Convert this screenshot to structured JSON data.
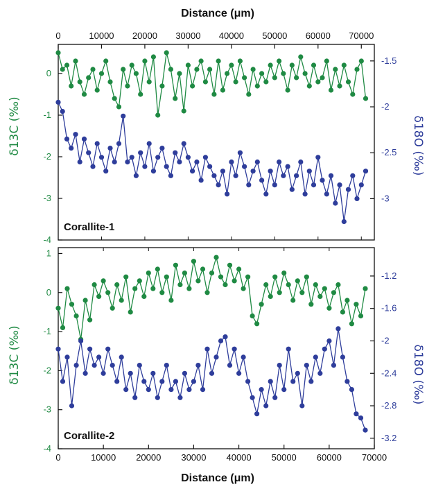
{
  "colors": {
    "carbon": "#1f8a43",
    "oxygen": "#2e3d9b",
    "axis": "#111111"
  },
  "labels": {
    "x_title_top": "Distance (μm)",
    "x_title_bottom": "Distance (μm)",
    "y_left": "δ13C (‰)",
    "y_right": "δ18O (‰)"
  },
  "chart_data": [
    {
      "type": "line",
      "title": "Corallite-1",
      "xlabel": "Distance (μm)",
      "x_ticks": [
        0,
        10000,
        20000,
        30000,
        40000,
        50000,
        60000,
        70000
      ],
      "xlim": [
        0,
        73000
      ],
      "y_left": {
        "label": "δ13C (‰)",
        "lim": [
          -4,
          0.7
        ],
        "ticks": [
          0,
          -1,
          -2,
          -3,
          -4
        ]
      },
      "y_right": {
        "label": "δ18O (‰)",
        "lim": [
          -3.45,
          -1.32
        ],
        "ticks": [
          -1.5,
          -2,
          -2.5,
          -3
        ]
      },
      "series": [
        {
          "name": "δ13C",
          "axis": "left",
          "color": "#1f8a43",
          "x": [
            0,
            1000,
            2000,
            3000,
            4000,
            5000,
            6000,
            7000,
            8000,
            9000,
            10000,
            11000,
            12000,
            13000,
            14000,
            15000,
            16000,
            17000,
            18000,
            19000,
            20000,
            21000,
            22000,
            23000,
            24000,
            25000,
            26000,
            27000,
            28000,
            29000,
            30000,
            31000,
            32000,
            33000,
            34000,
            35000,
            36000,
            37000,
            38000,
            39000,
            40000,
            41000,
            42000,
            43000,
            44000,
            45000,
            46000,
            47000,
            48000,
            49000,
            50000,
            51000,
            52000,
            53000,
            54000,
            55000,
            56000,
            57000,
            58000,
            59000,
            60000,
            61000,
            62000,
            63000,
            64000,
            65000,
            66000,
            67000,
            68000,
            69000,
            70000,
            71000
          ],
          "y": [
            0.5,
            0.1,
            0.2,
            -0.3,
            0.3,
            -0.2,
            -0.5,
            -0.1,
            0.1,
            -0.4,
            0.0,
            0.3,
            -0.2,
            -0.6,
            -0.8,
            0.1,
            -0.3,
            0.2,
            0.0,
            -0.5,
            0.3,
            -0.2,
            0.4,
            -1.0,
            -0.3,
            0.5,
            0.1,
            -0.6,
            0.0,
            -0.9,
            0.2,
            -0.3,
            0.1,
            0.3,
            -0.2,
            0.1,
            -0.5,
            0.3,
            -0.4,
            0.0,
            0.2,
            -0.2,
            0.3,
            -0.1,
            -0.5,
            0.1,
            -0.3,
            0.0,
            -0.2,
            0.2,
            -0.1,
            0.3,
            0.0,
            -0.4,
            0.2,
            -0.1,
            0.4,
            0.0,
            -0.3,
            0.2,
            -0.2,
            -0.1,
            0.3,
            -0.4,
            0.1,
            -0.3,
            0.2,
            -0.2,
            -0.5,
            0.1,
            0.3,
            -0.6
          ]
        },
        {
          "name": "δ18O",
          "axis": "right",
          "color": "#2e3d9b",
          "x": [
            0,
            1000,
            2000,
            3000,
            4000,
            5000,
            6000,
            7000,
            8000,
            9000,
            10000,
            11000,
            12000,
            13000,
            14000,
            15000,
            16000,
            17000,
            18000,
            19000,
            20000,
            21000,
            22000,
            23000,
            24000,
            25000,
            26000,
            27000,
            28000,
            29000,
            30000,
            31000,
            32000,
            33000,
            34000,
            35000,
            36000,
            37000,
            38000,
            39000,
            40000,
            41000,
            42000,
            43000,
            44000,
            45000,
            46000,
            47000,
            48000,
            49000,
            50000,
            51000,
            52000,
            53000,
            54000,
            55000,
            56000,
            57000,
            58000,
            59000,
            60000,
            61000,
            62000,
            63000,
            64000,
            65000,
            66000,
            67000,
            68000,
            69000,
            70000,
            71000
          ],
          "y": [
            -1.95,
            -2.05,
            -2.35,
            -2.45,
            -2.3,
            -2.6,
            -2.35,
            -2.5,
            -2.65,
            -2.4,
            -2.55,
            -2.7,
            -2.45,
            -2.6,
            -2.4,
            -2.1,
            -2.6,
            -2.55,
            -2.75,
            -2.5,
            -2.65,
            -2.4,
            -2.7,
            -2.55,
            -2.45,
            -2.65,
            -2.75,
            -2.5,
            -2.6,
            -2.4,
            -2.55,
            -2.7,
            -2.6,
            -2.8,
            -2.55,
            -2.65,
            -2.75,
            -2.85,
            -2.7,
            -2.95,
            -2.6,
            -2.75,
            -2.5,
            -2.65,
            -2.85,
            -2.7,
            -2.6,
            -2.8,
            -2.95,
            -2.7,
            -2.85,
            -2.6,
            -2.75,
            -2.65,
            -2.9,
            -2.75,
            -2.6,
            -2.95,
            -2.7,
            -2.85,
            -2.55,
            -2.8,
            -2.95,
            -2.75,
            -3.05,
            -2.85,
            -3.25,
            -2.9,
            -2.75,
            -3.0,
            -2.85,
            -2.7
          ]
        }
      ]
    },
    {
      "type": "line",
      "title": "Corallite-2",
      "xlabel": "Distance (μm)",
      "x_ticks": [
        0,
        10000,
        20000,
        30000,
        40000,
        50000,
        60000,
        70000
      ],
      "xlim": [
        0,
        70000
      ],
      "y_left": {
        "label": "δ13C (‰)",
        "lim": [
          -4,
          1.15
        ],
        "ticks": [
          1,
          0,
          -1,
          -2,
          -3,
          -4
        ]
      },
      "y_right": {
        "label": "δ18O (‰)",
        "lim": [
          -3.33,
          -0.85
        ],
        "ticks": [
          -1.2,
          -1.6,
          -2,
          -2.4,
          -2.8,
          -3.2
        ]
      },
      "series": [
        {
          "name": "δ13C",
          "axis": "left",
          "color": "#1f8a43",
          "x": [
            0,
            1000,
            2000,
            3000,
            4000,
            5000,
            6000,
            7000,
            8000,
            9000,
            10000,
            11000,
            12000,
            13000,
            14000,
            15000,
            16000,
            17000,
            18000,
            19000,
            20000,
            21000,
            22000,
            23000,
            24000,
            25000,
            26000,
            27000,
            28000,
            29000,
            30000,
            31000,
            32000,
            33000,
            34000,
            35000,
            36000,
            37000,
            38000,
            39000,
            40000,
            41000,
            42000,
            43000,
            44000,
            45000,
            46000,
            47000,
            48000,
            49000,
            50000,
            51000,
            52000,
            53000,
            54000,
            55000,
            56000,
            57000,
            58000,
            59000,
            60000,
            61000,
            62000,
            63000,
            64000,
            65000,
            66000,
            67000,
            68000
          ],
          "y": [
            -0.4,
            -0.9,
            0.1,
            -0.3,
            -0.6,
            -1.2,
            -0.2,
            -0.7,
            0.2,
            -0.1,
            0.3,
            0.0,
            -0.4,
            0.2,
            -0.2,
            0.4,
            -0.5,
            0.1,
            0.3,
            -0.1,
            0.5,
            0.1,
            0.6,
            0.0,
            0.4,
            -0.2,
            0.7,
            0.2,
            0.5,
            0.1,
            0.8,
            0.3,
            0.6,
            0.0,
            0.5,
            0.9,
            0.4,
            0.2,
            0.7,
            0.3,
            0.6,
            0.1,
            0.4,
            -0.6,
            -0.8,
            -0.3,
            0.2,
            -0.1,
            0.4,
            0.0,
            0.5,
            0.2,
            -0.2,
            0.3,
            0.0,
            0.4,
            -0.3,
            0.2,
            -0.1,
            0.1,
            -0.4,
            0.0,
            0.2,
            -0.5,
            -0.2,
            -0.8,
            -0.3,
            -0.6,
            0.1
          ]
        },
        {
          "name": "δ18O",
          "axis": "right",
          "color": "#2e3d9b",
          "x": [
            0,
            1000,
            2000,
            3000,
            4000,
            5000,
            6000,
            7000,
            8000,
            9000,
            10000,
            11000,
            12000,
            13000,
            14000,
            15000,
            16000,
            17000,
            18000,
            19000,
            20000,
            21000,
            22000,
            23000,
            24000,
            25000,
            26000,
            27000,
            28000,
            29000,
            30000,
            31000,
            32000,
            33000,
            34000,
            35000,
            36000,
            37000,
            38000,
            39000,
            40000,
            41000,
            42000,
            43000,
            44000,
            45000,
            46000,
            47000,
            48000,
            49000,
            50000,
            51000,
            52000,
            53000,
            54000,
            55000,
            56000,
            57000,
            58000,
            59000,
            60000,
            61000,
            62000,
            63000,
            64000,
            65000,
            66000,
            67000,
            68000
          ],
          "y": [
            -2.1,
            -2.5,
            -2.2,
            -2.8,
            -2.3,
            -2.0,
            -2.4,
            -2.1,
            -2.3,
            -2.2,
            -2.4,
            -2.1,
            -2.3,
            -2.5,
            -2.2,
            -2.6,
            -2.4,
            -2.7,
            -2.3,
            -2.5,
            -2.6,
            -2.4,
            -2.7,
            -2.5,
            -2.3,
            -2.6,
            -2.5,
            -2.7,
            -2.4,
            -2.6,
            -2.5,
            -2.3,
            -2.6,
            -2.1,
            -2.4,
            -2.2,
            -2.0,
            -1.95,
            -2.3,
            -2.1,
            -2.4,
            -2.2,
            -2.5,
            -2.7,
            -2.9,
            -2.6,
            -2.8,
            -2.5,
            -2.7,
            -2.3,
            -2.6,
            -2.1,
            -2.5,
            -2.4,
            -2.8,
            -2.3,
            -2.5,
            -2.2,
            -2.4,
            -2.1,
            -2.0,
            -2.3,
            -1.85,
            -2.2,
            -2.5,
            -2.6,
            -2.9,
            -2.95,
            -3.1
          ]
        }
      ]
    }
  ]
}
